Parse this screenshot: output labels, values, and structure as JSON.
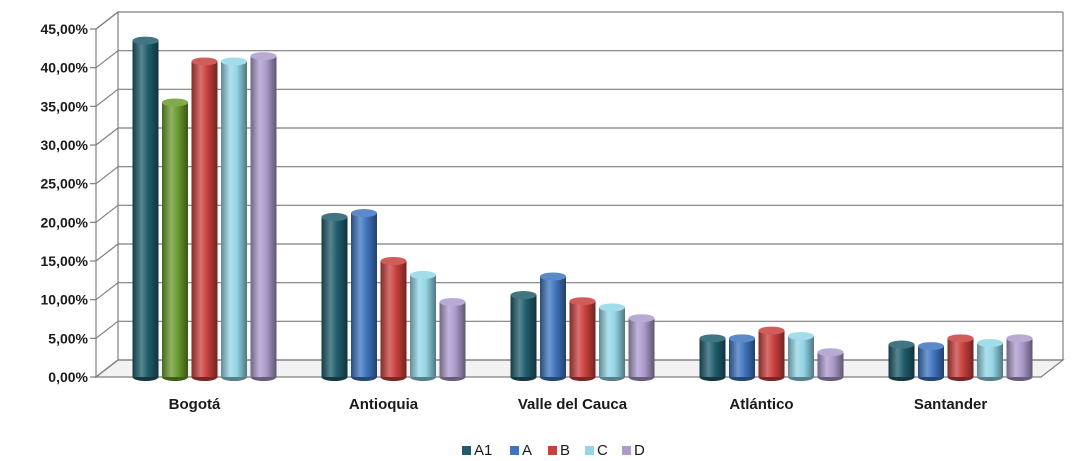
{
  "chart_data": {
    "type": "bar",
    "categories": [
      "Bogotá",
      "Antioquia",
      "Valle del Cauca",
      "Atlántico",
      "Santander"
    ],
    "series": [
      {
        "name": "A1",
        "color": "#1f5d6c",
        "values": [
          43.5,
          20.7,
          10.6,
          5.0,
          4.2
        ]
      },
      {
        "name": "A",
        "color": "#3f75bf",
        "values": [
          35.5,
          21.2,
          13.0,
          5.0,
          4.0
        ]
      },
      {
        "name": "B",
        "color": "#c9403d",
        "values": [
          40.8,
          15.0,
          9.8,
          6.0,
          5.0
        ]
      },
      {
        "name": "C",
        "color": "#93d6e6",
        "values": [
          40.8,
          13.2,
          9.0,
          5.3,
          4.4
        ]
      },
      {
        "name": "D",
        "color": "#ad9bcc",
        "values": [
          41.5,
          9.7,
          7.6,
          3.2,
          5.0
        ]
      }
    ],
    "bar_overrides": [
      {
        "category": 0,
        "series": 1,
        "color": "#6b9b2e"
      }
    ],
    "yticks": [
      "0,00%",
      "5,00%",
      "10,00%",
      "15,00%",
      "20,00%",
      "25,00%",
      "30,00%",
      "35,00%",
      "40,00%",
      "45,00%"
    ],
    "ylim": [
      0,
      45
    ],
    "xlabel": "",
    "ylabel": "",
    "grid": true,
    "legend_position": "bottom-center"
  }
}
